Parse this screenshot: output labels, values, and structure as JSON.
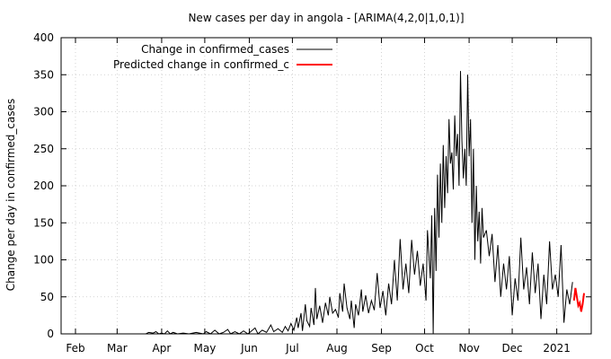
{
  "chart_data": {
    "type": "line",
    "title": "New cases per day in angola -  [ARIMA(4,2,0|1,0,1)]",
    "xlabel": "",
    "ylabel": "Change per day in confirmed_cases",
    "ylim": [
      0,
      400
    ],
    "yticks": [
      0,
      50,
      100,
      150,
      200,
      250,
      300,
      350,
      400
    ],
    "xlim": [
      "2020-01-22",
      "2021-01-25"
    ],
    "xticks": [
      {
        "date": "2020-02-01",
        "label": "Feb"
      },
      {
        "date": "2020-03-01",
        "label": "Mar"
      },
      {
        "date": "2020-04-01",
        "label": "Apr"
      },
      {
        "date": "2020-05-01",
        "label": "May"
      },
      {
        "date": "2020-06-01",
        "label": "Jun"
      },
      {
        "date": "2020-07-01",
        "label": "Jul"
      },
      {
        "date": "2020-08-01",
        "label": "Aug"
      },
      {
        "date": "2020-09-01",
        "label": "Sep"
      },
      {
        "date": "2020-10-01",
        "label": "Oct"
      },
      {
        "date": "2020-11-01",
        "label": "Nov"
      },
      {
        "date": "2020-12-01",
        "label": "Dec"
      },
      {
        "date": "2021-01-01",
        "label": "2021"
      }
    ],
    "grid": true,
    "legend_position": "top-left",
    "series": [
      {
        "name": "Change in confirmed_cases",
        "color": "#000000",
        "points": [
          [
            "2020-03-21",
            0
          ],
          [
            "2020-03-23",
            2
          ],
          [
            "2020-03-26",
            1
          ],
          [
            "2020-03-28",
            3
          ],
          [
            "2020-03-30",
            0
          ],
          [
            "2020-04-01",
            1
          ],
          [
            "2020-04-03",
            0
          ],
          [
            "2020-04-05",
            4
          ],
          [
            "2020-04-07",
            0
          ],
          [
            "2020-04-09",
            2
          ],
          [
            "2020-04-12",
            0
          ],
          [
            "2020-04-16",
            1
          ],
          [
            "2020-04-20",
            0
          ],
          [
            "2020-04-25",
            2
          ],
          [
            "2020-04-30",
            0
          ],
          [
            "2020-05-02",
            3
          ],
          [
            "2020-05-05",
            0
          ],
          [
            "2020-05-08",
            5
          ],
          [
            "2020-05-11",
            0
          ],
          [
            "2020-05-14",
            2
          ],
          [
            "2020-05-17",
            6
          ],
          [
            "2020-05-19",
            0
          ],
          [
            "2020-05-22",
            3
          ],
          [
            "2020-05-25",
            0
          ],
          [
            "2020-05-28",
            4
          ],
          [
            "2020-05-31",
            0
          ],
          [
            "2020-06-02",
            3
          ],
          [
            "2020-06-05",
            8
          ],
          [
            "2020-06-07",
            0
          ],
          [
            "2020-06-10",
            5
          ],
          [
            "2020-06-13",
            2
          ],
          [
            "2020-06-16",
            12
          ],
          [
            "2020-06-18",
            3
          ],
          [
            "2020-06-21",
            7
          ],
          [
            "2020-06-24",
            2
          ],
          [
            "2020-06-26",
            10
          ],
          [
            "2020-06-28",
            4
          ],
          [
            "2020-06-30",
            14
          ],
          [
            "2020-07-02",
            5
          ],
          [
            "2020-07-04",
            22
          ],
          [
            "2020-07-05",
            8
          ],
          [
            "2020-07-07",
            28
          ],
          [
            "2020-07-08",
            4
          ],
          [
            "2020-07-10",
            40
          ],
          [
            "2020-07-11",
            18
          ],
          [
            "2020-07-13",
            10
          ],
          [
            "2020-07-14",
            35
          ],
          [
            "2020-07-16",
            12
          ],
          [
            "2020-07-17",
            62
          ],
          [
            "2020-07-18",
            20
          ],
          [
            "2020-07-20",
            38
          ],
          [
            "2020-07-22",
            15
          ],
          [
            "2020-07-24",
            42
          ],
          [
            "2020-07-26",
            25
          ],
          [
            "2020-07-27",
            50
          ],
          [
            "2020-07-29",
            28
          ],
          [
            "2020-07-31",
            33
          ],
          [
            "2020-08-02",
            22
          ],
          [
            "2020-08-03",
            55
          ],
          [
            "2020-08-05",
            30
          ],
          [
            "2020-08-06",
            68
          ],
          [
            "2020-08-08",
            35
          ],
          [
            "2020-08-10",
            20
          ],
          [
            "2020-08-11",
            45
          ],
          [
            "2020-08-13",
            8
          ],
          [
            "2020-08-14",
            40
          ],
          [
            "2020-08-16",
            25
          ],
          [
            "2020-08-18",
            60
          ],
          [
            "2020-08-19",
            30
          ],
          [
            "2020-08-21",
            52
          ],
          [
            "2020-08-23",
            28
          ],
          [
            "2020-08-25",
            45
          ],
          [
            "2020-08-27",
            32
          ],
          [
            "2020-08-29",
            82
          ],
          [
            "2020-08-31",
            35
          ],
          [
            "2020-09-02",
            58
          ],
          [
            "2020-09-04",
            25
          ],
          [
            "2020-09-06",
            68
          ],
          [
            "2020-09-08",
            40
          ],
          [
            "2020-09-10",
            100
          ],
          [
            "2020-09-12",
            45
          ],
          [
            "2020-09-14",
            128
          ],
          [
            "2020-09-16",
            60
          ],
          [
            "2020-09-18",
            95
          ],
          [
            "2020-09-20",
            55
          ],
          [
            "2020-09-22",
            127
          ],
          [
            "2020-09-24",
            80
          ],
          [
            "2020-09-26",
            112
          ],
          [
            "2020-09-28",
            65
          ],
          [
            "2020-09-30",
            95
          ],
          [
            "2020-10-02",
            45
          ],
          [
            "2020-10-03",
            140
          ],
          [
            "2020-10-05",
            75
          ],
          [
            "2020-10-06",
            160
          ],
          [
            "2020-10-07",
            0
          ],
          [
            "2020-10-08",
            170
          ],
          [
            "2020-10-09",
            85
          ],
          [
            "2020-10-10",
            215
          ],
          [
            "2020-10-11",
            130
          ],
          [
            "2020-10-12",
            230
          ],
          [
            "2020-10-13",
            150
          ],
          [
            "2020-10-14",
            255
          ],
          [
            "2020-10-15",
            170
          ],
          [
            "2020-10-16",
            240
          ],
          [
            "2020-10-17",
            190
          ],
          [
            "2020-10-18",
            290
          ],
          [
            "2020-10-19",
            230
          ],
          [
            "2020-10-20",
            245
          ],
          [
            "2020-10-21",
            195
          ],
          [
            "2020-10-22",
            295
          ],
          [
            "2020-10-23",
            240
          ],
          [
            "2020-10-24",
            270
          ],
          [
            "2020-10-25",
            200
          ],
          [
            "2020-10-26",
            355
          ],
          [
            "2020-10-27",
            260
          ],
          [
            "2020-10-28",
            210
          ],
          [
            "2020-10-29",
            250
          ],
          [
            "2020-10-30",
            200
          ],
          [
            "2020-10-31",
            350
          ],
          [
            "2020-11-01",
            240
          ],
          [
            "2020-11-02",
            290
          ],
          [
            "2020-11-03",
            150
          ],
          [
            "2020-11-04",
            250
          ],
          [
            "2020-11-05",
            100
          ],
          [
            "2020-11-06",
            200
          ],
          [
            "2020-11-07",
            125
          ],
          [
            "2020-11-08",
            165
          ],
          [
            "2020-11-09",
            95
          ],
          [
            "2020-11-10",
            170
          ],
          [
            "2020-11-11",
            130
          ],
          [
            "2020-11-13",
            140
          ],
          [
            "2020-11-15",
            105
          ],
          [
            "2020-11-17",
            135
          ],
          [
            "2020-11-19",
            70
          ],
          [
            "2020-11-21",
            120
          ],
          [
            "2020-11-23",
            50
          ],
          [
            "2020-11-25",
            95
          ],
          [
            "2020-11-27",
            60
          ],
          [
            "2020-11-29",
            105
          ],
          [
            "2020-12-01",
            25
          ],
          [
            "2020-12-03",
            75
          ],
          [
            "2020-12-05",
            45
          ],
          [
            "2020-12-07",
            130
          ],
          [
            "2020-12-09",
            60
          ],
          [
            "2020-12-11",
            90
          ],
          [
            "2020-12-13",
            40
          ],
          [
            "2020-12-15",
            110
          ],
          [
            "2020-12-17",
            55
          ],
          [
            "2020-12-19",
            95
          ],
          [
            "2020-12-21",
            20
          ],
          [
            "2020-12-23",
            80
          ],
          [
            "2020-12-25",
            40
          ],
          [
            "2020-12-27",
            125
          ],
          [
            "2020-12-29",
            60
          ],
          [
            "2020-12-31",
            80
          ],
          [
            "2021-01-02",
            50
          ],
          [
            "2021-01-04",
            120
          ],
          [
            "2021-01-06",
            15
          ],
          [
            "2021-01-08",
            60
          ],
          [
            "2021-01-10",
            40
          ],
          [
            "2021-01-12",
            70
          ]
        ]
      },
      {
        "name": "Predicted change in confirmed_c",
        "color": "#ff0000",
        "points": [
          [
            "2021-01-13",
            45
          ],
          [
            "2021-01-14",
            62
          ],
          [
            "2021-01-15",
            50
          ],
          [
            "2021-01-16",
            38
          ],
          [
            "2021-01-17",
            42
          ],
          [
            "2021-01-18",
            30
          ],
          [
            "2021-01-19",
            40
          ],
          [
            "2021-01-20",
            55
          ]
        ]
      }
    ]
  }
}
